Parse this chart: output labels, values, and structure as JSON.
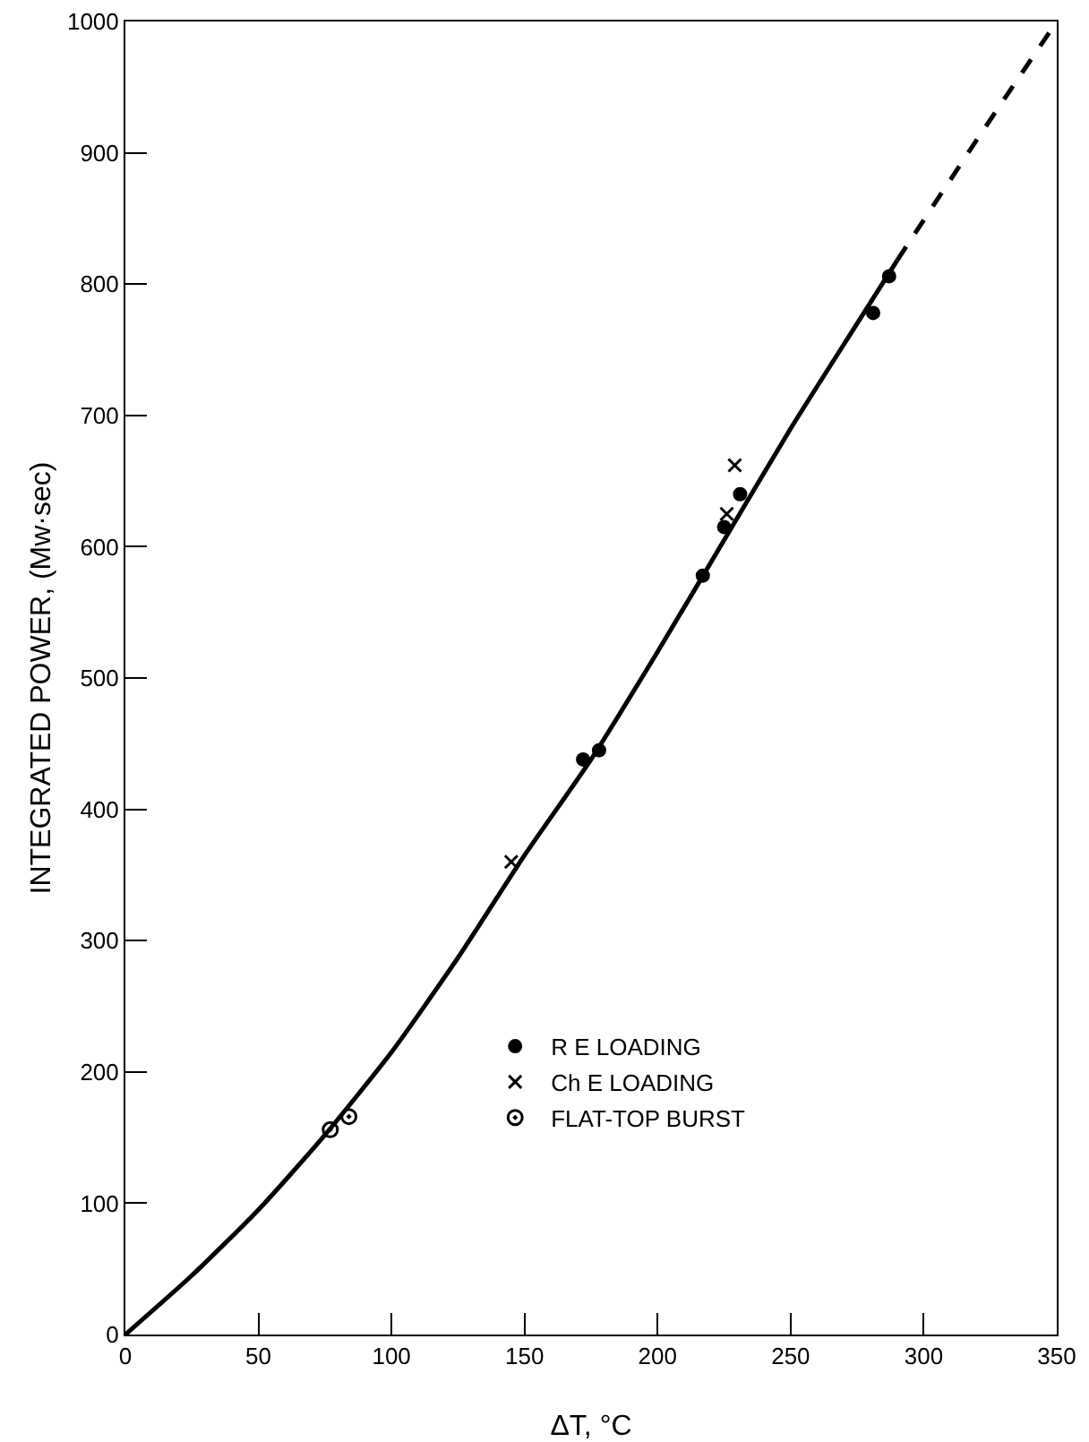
{
  "chart_data": {
    "type": "scatter",
    "xlabel": "ΔT, °C",
    "ylabel": "INTEGRATED POWER, (Mw·sec)",
    "xlim": [
      0,
      350
    ],
    "ylim": [
      0,
      1000
    ],
    "xticks": [
      0,
      50,
      100,
      150,
      200,
      250,
      300,
      350
    ],
    "yticks": [
      0,
      100,
      200,
      300,
      400,
      500,
      600,
      700,
      800,
      900,
      1000
    ],
    "grid": false,
    "legend": "bottom",
    "series": [
      {
        "name": "R E LOADING",
        "color": "#000000",
        "marker": "circle",
        "x": [
          172,
          178,
          217,
          225,
          231,
          281,
          287
        ],
        "values": [
          438,
          445,
          578,
          615,
          640,
          778,
          806
        ]
      },
      {
        "name": "Ch E LOADING",
        "color": "#000000",
        "marker": "cross",
        "x": [
          145,
          226,
          229
        ],
        "values": [
          360,
          625,
          662
        ]
      },
      {
        "name": "FLAT-TOP BURST",
        "color": "#000000",
        "marker": "circle-dot",
        "x": [
          77,
          84
        ],
        "values": [
          156,
          166
        ]
      },
      {
        "type": "line",
        "color": "#000000",
        "marker": "none",
        "line_style": "solid",
        "x": [
          0,
          25,
          50,
          75,
          100,
          125,
          150,
          175,
          200,
          225,
          250,
          275,
          290
        ],
        "values": [
          0,
          45,
          95,
          152,
          215,
          287,
          365,
          438,
          520,
          605,
          690,
          770,
          818
        ]
      },
      {
        "type": "line",
        "color": "#000000",
        "marker": "none",
        "line_style": "dashed",
        "x": [
          290,
          320,
          350
        ],
        "values": [
          818,
          910,
          1000
        ]
      }
    ]
  }
}
